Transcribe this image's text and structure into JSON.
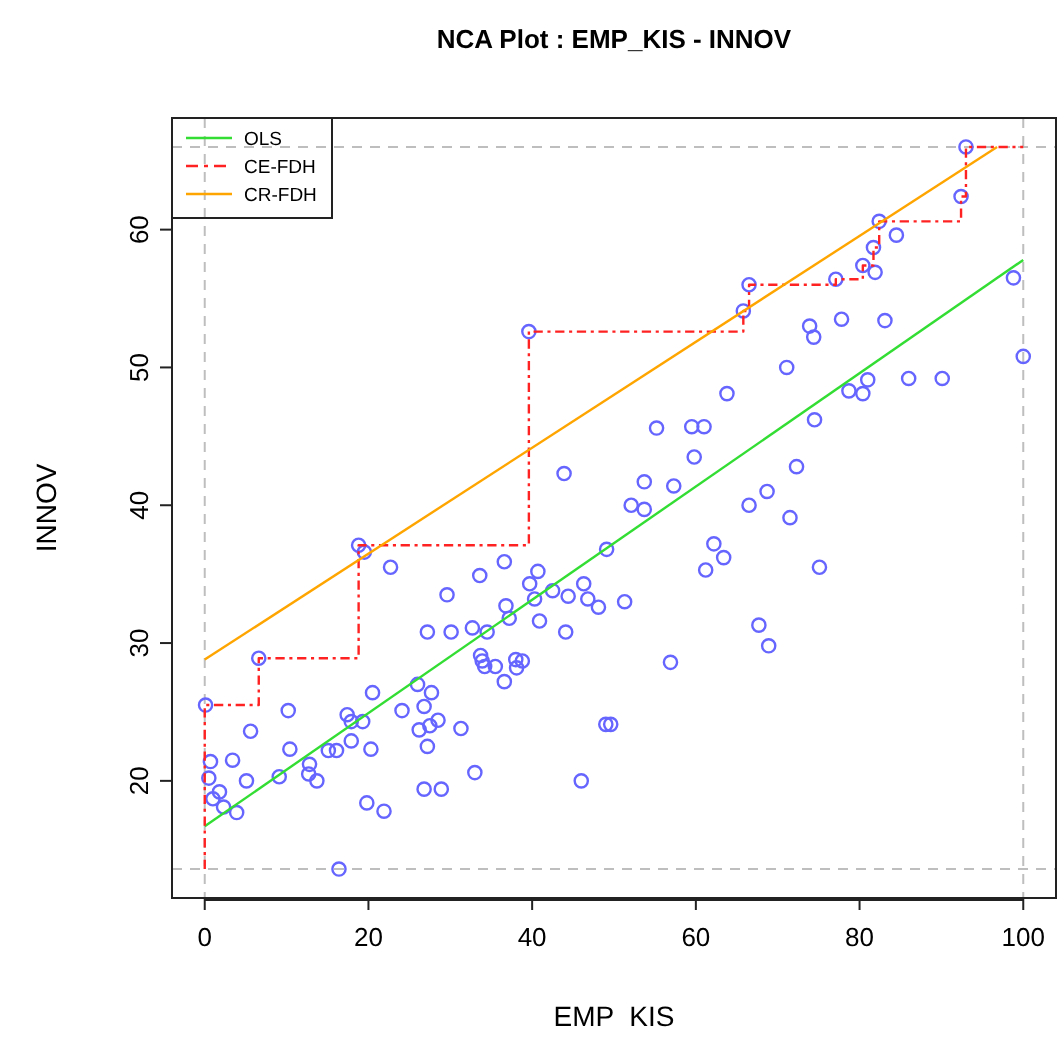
{
  "chart_data": {
    "type": "scatter",
    "title": "NCA Plot : EMP_KIS - INNOV",
    "xlabel": "EMP  KIS",
    "ylabel": "INNOV",
    "xlim": [
      -4,
      104
    ],
    "ylim": [
      11.5,
      68.1
    ],
    "xticks": [
      0,
      20,
      40,
      60,
      80,
      100
    ],
    "yticks": [
      20,
      30,
      40,
      50,
      60
    ],
    "grid": false,
    "legend": "top left",
    "ref_lines": [
      {
        "axis": "x",
        "value": 0,
        "color": "#bebebe",
        "line_style": "dashed"
      },
      {
        "axis": "x",
        "value": 100,
        "color": "#bebebe",
        "line_style": "dashed"
      },
      {
        "axis": "y",
        "value": 13.6,
        "color": "#bebebe",
        "line_style": "dashed"
      },
      {
        "axis": "y",
        "value": 66,
        "color": "#bebebe",
        "line_style": "dashed"
      }
    ],
    "series": [
      {
        "color": "#6666ff",
        "marker": "circle",
        "x": [
          0.1,
          6.6,
          18.8,
          19.5,
          22.7,
          0.7,
          0.5,
          1.0,
          1.8,
          2.3,
          3.9,
          3.4,
          5.1,
          5.6,
          9.1,
          10.2,
          10.4,
          12.8,
          12.7,
          13.7,
          15.1,
          16.1,
          17.4,
          17.9,
          17.9,
          19.3,
          20.3,
          20.5,
          19.8,
          21.9,
          16.4,
          29.6,
          33.6,
          36.6,
          27.2,
          30.1,
          32.7,
          34.5,
          26.0,
          27.7,
          26.8,
          24.1,
          26.2,
          27.5,
          28.5,
          27.2,
          31.3,
          26.8,
          28.9,
          33.0,
          33.7,
          33.9,
          34.2,
          35.5,
          36.6,
          38.0,
          38.8,
          38.1,
          36.8,
          37.2,
          39.7,
          40.7,
          40.3,
          40.9,
          42.5,
          44.1,
          44.4,
          46.3,
          46.8,
          48.1,
          46.0,
          49.0,
          49.6,
          49.1,
          53.7,
          57.3,
          52.1,
          53.7,
          66.5,
          68.7,
          71.5,
          62.2,
          63.4,
          61.2,
          75.1,
          51.3,
          67.7,
          68.9,
          56.9,
          93.0,
          92.4,
          82.4,
          84.5,
          81.7,
          80.4,
          81.9,
          77.1,
          66.5,
          65.8,
          73.9,
          74.4,
          77.8,
          83.1,
          98.8,
          100,
          71.1,
          63.8,
          78.7,
          80.4,
          81.0,
          86.0,
          90.1,
          55.2,
          59.5,
          61.0,
          59.8,
          74.5,
          72.3,
          39.6,
          43.9
        ],
        "values": [
          25.5,
          28.9,
          37.1,
          36.6,
          35.5,
          21.4,
          20.2,
          18.7,
          19.2,
          18.1,
          17.7,
          21.5,
          20.0,
          23.6,
          20.3,
          25.1,
          22.3,
          21.2,
          20.5,
          20.0,
          22.2,
          22.2,
          24.8,
          24.3,
          22.9,
          24.3,
          22.3,
          26.4,
          18.4,
          17.8,
          13.6,
          33.5,
          34.9,
          35.9,
          30.8,
          30.8,
          31.1,
          30.8,
          27.0,
          26.4,
          25.4,
          25.1,
          23.7,
          24.0,
          24.4,
          22.5,
          23.8,
          19.4,
          19.4,
          20.6,
          29.1,
          28.7,
          28.3,
          28.3,
          27.2,
          28.8,
          28.7,
          28.2,
          32.7,
          31.8,
          34.3,
          35.2,
          33.2,
          31.6,
          33.8,
          30.8,
          33.4,
          34.3,
          33.2,
          32.6,
          20.0,
          24.1,
          24.1,
          36.8,
          41.7,
          41.4,
          40.0,
          39.7,
          40.0,
          41.0,
          39.1,
          37.2,
          36.2,
          35.3,
          35.5,
          33.0,
          31.3,
          29.8,
          28.6,
          66.0,
          62.4,
          60.6,
          59.6,
          58.7,
          57.4,
          56.9,
          56.4,
          56.0,
          54.1,
          53.0,
          52.2,
          53.5,
          53.4,
          56.5,
          50.8,
          50.0,
          48.1,
          48.3,
          48.1,
          49.1,
          49.2,
          49.2,
          45.6,
          45.7,
          45.7,
          43.5,
          46.2,
          42.8,
          52.6,
          42.3
        ]
      },
      {
        "type": "line",
        "name": "OLS",
        "color": "#33dd33",
        "line_style": "solid",
        "x": [
          0,
          100
        ],
        "values": [
          16.7,
          57.8
        ]
      },
      {
        "type": "step",
        "name": "CE-FDH",
        "color": "#ff2222",
        "line_style": "dashed",
        "x": [
          0,
          0,
          6.6,
          18.8,
          39.6,
          65.8,
          66.5,
          77.1,
          80.4,
          81.7,
          82.4,
          92.4,
          93.0,
          100
        ],
        "values": [
          13.6,
          25.5,
          28.9,
          37.1,
          52.6,
          54.1,
          56.0,
          56.4,
          57.4,
          58.7,
          60.6,
          62.4,
          66.0,
          66.0
        ]
      },
      {
        "type": "line",
        "name": "CR-FDH",
        "color": "#ffa500",
        "line_style": "solid",
        "x": [
          0,
          96.8
        ],
        "values": [
          28.8,
          66
        ]
      }
    ]
  }
}
